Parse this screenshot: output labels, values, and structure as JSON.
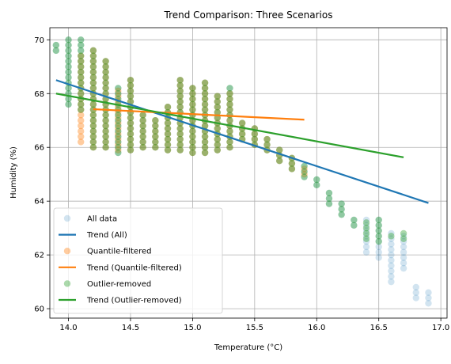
{
  "chart_data": {
    "type": "scatter",
    "title": "Trend Comparison: Three Scenarios",
    "xlabel": "Temperature (°C)",
    "ylabel": "Humidity (%)",
    "xlim": [
      13.85,
      17.05
    ],
    "ylim": [
      59.65,
      70.45
    ],
    "xticks": [
      14.0,
      14.5,
      15.0,
      15.5,
      16.0,
      16.5,
      17.0
    ],
    "xtick_labels": [
      "14.0",
      "14.5",
      "15.0",
      "15.5",
      "16.0",
      "16.5",
      "17.0"
    ],
    "yticks": [
      60,
      62,
      64,
      66,
      68,
      70
    ],
    "ytick_labels": [
      "60",
      "62",
      "64",
      "66",
      "68",
      "70"
    ],
    "grid": true,
    "legend_position": "lower-left",
    "series": [
      {
        "name": "All data",
        "kind": "scatter",
        "color": "#1f77b4",
        "alpha": 0.2,
        "columns": [
          {
            "x": 13.9,
            "ymin": 69.6,
            "ymax": 69.9,
            "step": 0.2
          },
          {
            "x": 14.0,
            "ymin": 67.6,
            "ymax": 70.1,
            "step": 0.2
          },
          {
            "x": 14.1,
            "ymin": 67.4,
            "ymax": 70.0,
            "step": 0.2
          },
          {
            "x": 14.2,
            "ymin": 66.0,
            "ymax": 69.6,
            "step": 0.2
          },
          {
            "x": 14.3,
            "ymin": 66.0,
            "ymax": 69.3,
            "step": 0.2
          },
          {
            "x": 14.4,
            "ymin": 65.8,
            "ymax": 68.2,
            "step": 0.2
          },
          {
            "x": 14.5,
            "ymin": 65.9,
            "ymax": 68.5,
            "step": 0.2
          },
          {
            "x": 14.6,
            "ymin": 66.0,
            "ymax": 67.3,
            "step": 0.2
          },
          {
            "x": 14.7,
            "ymin": 66.0,
            "ymax": 67.0,
            "step": 0.2
          },
          {
            "x": 14.8,
            "ymin": 65.9,
            "ymax": 67.6,
            "step": 0.2
          },
          {
            "x": 14.9,
            "ymin": 65.9,
            "ymax": 68.6,
            "step": 0.2
          },
          {
            "x": 15.0,
            "ymin": 65.8,
            "ymax": 68.2,
            "step": 0.2
          },
          {
            "x": 15.1,
            "ymin": 65.8,
            "ymax": 68.5,
            "step": 0.2
          },
          {
            "x": 15.2,
            "ymin": 65.9,
            "ymax": 68.0,
            "step": 0.2
          },
          {
            "x": 15.3,
            "ymin": 66.0,
            "ymax": 68.2,
            "step": 0.2
          },
          {
            "x": 15.4,
            "ymin": 66.3,
            "ymax": 67.0,
            "step": 0.2
          },
          {
            "x": 15.5,
            "ymin": 66.1,
            "ymax": 66.7,
            "step": 0.2
          },
          {
            "x": 15.6,
            "ymin": 65.9,
            "ymax": 66.4,
            "step": 0.2
          },
          {
            "x": 15.7,
            "ymin": 65.5,
            "ymax": 66.0,
            "step": 0.2
          },
          {
            "x": 15.8,
            "ymin": 65.2,
            "ymax": 65.6,
            "step": 0.2
          },
          {
            "x": 15.9,
            "ymin": 64.9,
            "ymax": 65.4,
            "step": 0.2
          },
          {
            "x": 16.0,
            "ymin": 64.6,
            "ymax": 64.8,
            "step": 0.2
          },
          {
            "x": 16.1,
            "ymin": 63.9,
            "ymax": 64.4,
            "step": 0.2
          },
          {
            "x": 16.2,
            "ymin": 63.5,
            "ymax": 64.0,
            "step": 0.2
          },
          {
            "x": 16.3,
            "ymin": 63.1,
            "ymax": 63.4,
            "step": 0.2
          },
          {
            "x": 16.4,
            "ymin": 62.1,
            "ymax": 63.3,
            "step": 0.2
          },
          {
            "x": 16.5,
            "ymin": 61.9,
            "ymax": 63.3,
            "step": 0.2
          },
          {
            "x": 16.6,
            "ymin": 61.0,
            "ymax": 62.8,
            "step": 0.2
          },
          {
            "x": 16.7,
            "ymin": 61.5,
            "ymax": 62.8,
            "step": 0.2
          },
          {
            "x": 16.8,
            "ymin": 60.4,
            "ymax": 60.9,
            "step": 0.2
          },
          {
            "x": 16.9,
            "ymin": 60.2,
            "ymax": 60.7,
            "step": 0.2
          }
        ]
      },
      {
        "name": "Trend (All)",
        "kind": "line",
        "color": "#1f77b4",
        "x": [
          13.9,
          16.9
        ],
        "y": [
          68.5,
          63.93
        ]
      },
      {
        "name": "Quantile-filtered",
        "kind": "scatter",
        "color": "#ff7f0e",
        "alpha": 0.4,
        "columns": [
          {
            "x": 14.1,
            "ymin": 66.2,
            "ymax": 69.5,
            "step": 0.2
          },
          {
            "x": 14.2,
            "ymin": 66.0,
            "ymax": 69.6,
            "step": 0.2
          },
          {
            "x": 14.3,
            "ymin": 66.0,
            "ymax": 69.2,
            "step": 0.2
          },
          {
            "x": 14.4,
            "ymin": 65.9,
            "ymax": 68.2,
            "step": 0.2
          },
          {
            "x": 14.5,
            "ymin": 65.9,
            "ymax": 68.5,
            "step": 0.2
          },
          {
            "x": 14.6,
            "ymin": 66.0,
            "ymax": 67.3,
            "step": 0.2
          },
          {
            "x": 14.7,
            "ymin": 66.0,
            "ymax": 67.0,
            "step": 0.2
          },
          {
            "x": 14.8,
            "ymin": 65.9,
            "ymax": 67.6,
            "step": 0.2
          },
          {
            "x": 14.9,
            "ymin": 65.9,
            "ymax": 68.5,
            "step": 0.2
          },
          {
            "x": 15.0,
            "ymin": 65.8,
            "ymax": 68.2,
            "step": 0.2
          },
          {
            "x": 15.1,
            "ymin": 65.8,
            "ymax": 68.4,
            "step": 0.2
          },
          {
            "x": 15.2,
            "ymin": 65.9,
            "ymax": 68.0,
            "step": 0.2
          },
          {
            "x": 15.3,
            "ymin": 66.0,
            "ymax": 68.1,
            "step": 0.2
          },
          {
            "x": 15.4,
            "ymin": 66.3,
            "ymax": 67.0,
            "step": 0.2
          },
          {
            "x": 15.5,
            "ymin": 66.1,
            "ymax": 66.7,
            "step": 0.2
          },
          {
            "x": 15.6,
            "ymin": 65.9,
            "ymax": 66.4,
            "step": 0.2
          },
          {
            "x": 15.7,
            "ymin": 65.5,
            "ymax": 66.0,
            "step": 0.2
          },
          {
            "x": 15.8,
            "ymin": 65.2,
            "ymax": 65.6,
            "step": 0.2
          },
          {
            "x": 15.9,
            "ymin": 65.0,
            "ymax": 65.3,
            "step": 0.2
          }
        ]
      },
      {
        "name": "Trend (Quantile-filtered)",
        "kind": "line",
        "color": "#ff7f0e",
        "x": [
          14.2,
          15.9
        ],
        "y": [
          67.42,
          67.03
        ]
      },
      {
        "name": "Outlier-removed",
        "kind": "scatter",
        "color": "#2ca02c",
        "alpha": 0.4,
        "columns": [
          {
            "x": 13.9,
            "ymin": 69.6,
            "ymax": 69.9,
            "step": 0.2
          },
          {
            "x": 14.0,
            "ymin": 67.6,
            "ymax": 70.1,
            "step": 0.2
          },
          {
            "x": 14.1,
            "ymin": 67.4,
            "ymax": 70.0,
            "step": 0.2
          },
          {
            "x": 14.2,
            "ymin": 66.0,
            "ymax": 69.6,
            "step": 0.2
          },
          {
            "x": 14.3,
            "ymin": 66.0,
            "ymax": 69.3,
            "step": 0.2
          },
          {
            "x": 14.4,
            "ymin": 65.8,
            "ymax": 68.2,
            "step": 0.2
          },
          {
            "x": 14.5,
            "ymin": 65.9,
            "ymax": 68.5,
            "step": 0.2
          },
          {
            "x": 14.6,
            "ymin": 66.0,
            "ymax": 67.3,
            "step": 0.2
          },
          {
            "x": 14.7,
            "ymin": 66.0,
            "ymax": 67.0,
            "step": 0.2
          },
          {
            "x": 14.8,
            "ymin": 65.9,
            "ymax": 67.6,
            "step": 0.2
          },
          {
            "x": 14.9,
            "ymin": 65.9,
            "ymax": 68.6,
            "step": 0.2
          },
          {
            "x": 15.0,
            "ymin": 65.8,
            "ymax": 68.2,
            "step": 0.2
          },
          {
            "x": 15.1,
            "ymin": 65.8,
            "ymax": 68.5,
            "step": 0.2
          },
          {
            "x": 15.2,
            "ymin": 65.9,
            "ymax": 68.0,
            "step": 0.2
          },
          {
            "x": 15.3,
            "ymin": 66.0,
            "ymax": 68.2,
            "step": 0.2
          },
          {
            "x": 15.4,
            "ymin": 66.3,
            "ymax": 67.0,
            "step": 0.2
          },
          {
            "x": 15.5,
            "ymin": 66.1,
            "ymax": 66.7,
            "step": 0.2
          },
          {
            "x": 15.6,
            "ymin": 65.9,
            "ymax": 66.4,
            "step": 0.2
          },
          {
            "x": 15.7,
            "ymin": 65.5,
            "ymax": 66.0,
            "step": 0.2
          },
          {
            "x": 15.8,
            "ymin": 65.2,
            "ymax": 65.6,
            "step": 0.2
          },
          {
            "x": 15.9,
            "ymin": 64.9,
            "ymax": 65.4,
            "step": 0.2
          },
          {
            "x": 16.0,
            "ymin": 64.6,
            "ymax": 64.8,
            "step": 0.2
          },
          {
            "x": 16.1,
            "ymin": 63.9,
            "ymax": 64.4,
            "step": 0.2
          },
          {
            "x": 16.2,
            "ymin": 63.5,
            "ymax": 64.0,
            "step": 0.2
          },
          {
            "x": 16.3,
            "ymin": 63.1,
            "ymax": 63.4,
            "step": 0.2
          },
          {
            "x": 16.4,
            "ymin": 62.6,
            "ymax": 63.3,
            "step": 0.2
          },
          {
            "x": 16.5,
            "ymin": 62.5,
            "ymax": 63.3,
            "step": 0.2
          },
          {
            "x": 16.6,
            "ymin": 62.7,
            "ymax": 62.8,
            "step": 0.2
          },
          {
            "x": 16.7,
            "ymin": 62.6,
            "ymax": 62.8,
            "step": 0.2
          }
        ]
      },
      {
        "name": "Trend (Outlier-removed)",
        "kind": "line",
        "color": "#2ca02c",
        "x": [
          13.9,
          16.7
        ],
        "y": [
          68.0,
          65.63
        ]
      }
    ],
    "legend": [
      {
        "label": "All data",
        "kind": "marker",
        "color": "#1f77b4",
        "alpha": 0.2
      },
      {
        "label": "Trend (All)",
        "kind": "line",
        "color": "#1f77b4"
      },
      {
        "label": "Quantile-filtered",
        "kind": "marker",
        "color": "#ff7f0e",
        "alpha": 0.4
      },
      {
        "label": "Trend (Quantile-filtered)",
        "kind": "line",
        "color": "#ff7f0e"
      },
      {
        "label": "Outlier-removed",
        "kind": "marker",
        "color": "#2ca02c",
        "alpha": 0.4
      },
      {
        "label": "Trend (Outlier-removed)",
        "kind": "line",
        "color": "#2ca02c"
      }
    ]
  }
}
